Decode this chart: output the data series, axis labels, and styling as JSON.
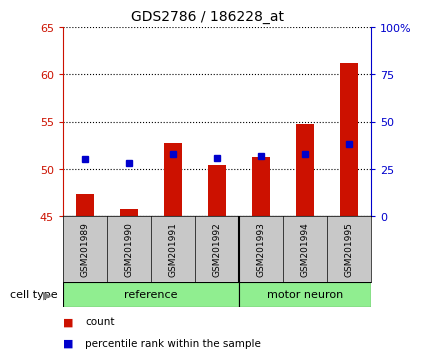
{
  "title": "GDS2786 / 186228_at",
  "samples": [
    "GSM201989",
    "GSM201990",
    "GSM201991",
    "GSM201992",
    "GSM201993",
    "GSM201994",
    "GSM201995"
  ],
  "count_values": [
    47.3,
    45.8,
    52.7,
    50.4,
    51.3,
    54.7,
    61.2
  ],
  "percentile_right_values": [
    30,
    28,
    33,
    31,
    32,
    33,
    38
  ],
  "count_base": 45.0,
  "ylim_left": [
    45,
    65
  ],
  "ylim_right": [
    0,
    100
  ],
  "yticks_left": [
    45,
    50,
    55,
    60,
    65
  ],
  "yticks_right": [
    0,
    25,
    50,
    75,
    100
  ],
  "ytick_labels_right": [
    "0",
    "25",
    "50",
    "75",
    "100%"
  ],
  "group_separator_idx": 4,
  "bar_color": "#CC1100",
  "dot_color": "#0000CC",
  "sample_bg_color": "#C8C8C8",
  "group_ref_color": "#90EE90",
  "group_mn_color": "#90EE90",
  "plot_bg": "#FFFFFF",
  "legend_count_label": "count",
  "legend_percentile_label": "percentile rank within the sample",
  "cell_type_label": "cell type",
  "left_tick_color": "#CC1100",
  "right_tick_color": "#0000CC",
  "bar_width": 0.4
}
